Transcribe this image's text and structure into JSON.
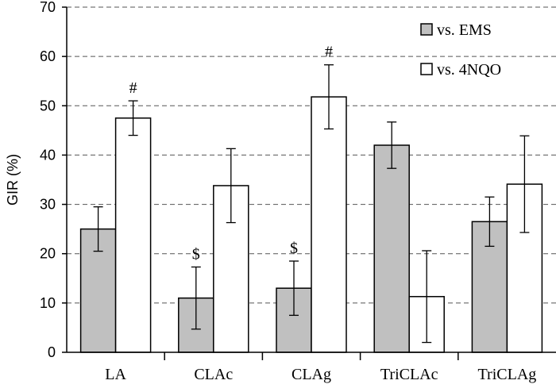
{
  "chart_data": {
    "type": "bar",
    "title": "",
    "xlabel": "",
    "ylabel": "GIR (%)",
    "ylim": [
      0,
      70
    ],
    "yticks": [
      0,
      10,
      20,
      30,
      40,
      50,
      60,
      70
    ],
    "grid": true,
    "legend_position": "top-right",
    "categories": [
      "LA",
      "CLAc",
      "CLAg",
      "TriCLAc",
      "TriCLAg"
    ],
    "series": [
      {
        "name": "vs. EMS",
        "color": "#c0c0c0",
        "values": [
          25.0,
          11.0,
          13.0,
          42.0,
          26.5
        ],
        "error": [
          4.5,
          6.3,
          5.5,
          4.7,
          5.0
        ],
        "annotations": [
          "",
          "$",
          "$",
          "",
          ""
        ]
      },
      {
        "name": "vs. 4NQO",
        "color": "#ffffff",
        "values": [
          47.5,
          33.8,
          51.8,
          11.3,
          34.1
        ],
        "error": [
          3.5,
          7.5,
          6.5,
          9.3,
          9.8
        ],
        "annotations": [
          "#",
          "",
          "#",
          "",
          ""
        ]
      }
    ]
  }
}
